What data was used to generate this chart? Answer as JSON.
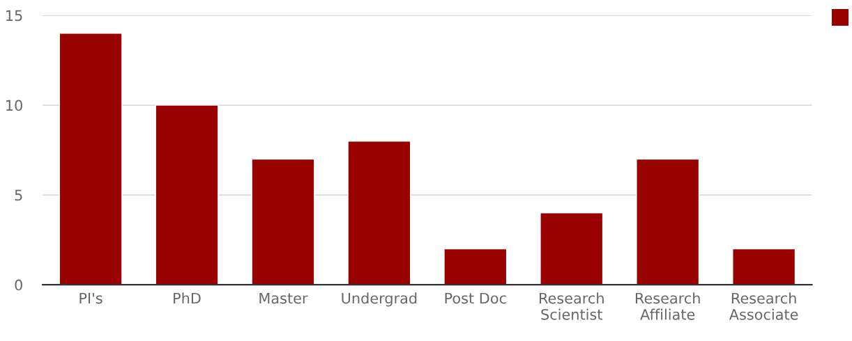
{
  "chart_data": {
    "type": "bar",
    "categories": [
      "PI's",
      "PhD",
      "Master",
      "Undergrad",
      "Post Doc",
      "Research\nScientist",
      "Research\nAffiliate",
      "Research\nAssociate"
    ],
    "values": [
      14,
      10,
      7,
      8,
      2,
      4,
      7,
      2
    ],
    "color": "#990000",
    "ylim": [
      0,
      15
    ],
    "yticks": [
      0,
      5,
      10,
      15
    ],
    "grid": "y"
  }
}
